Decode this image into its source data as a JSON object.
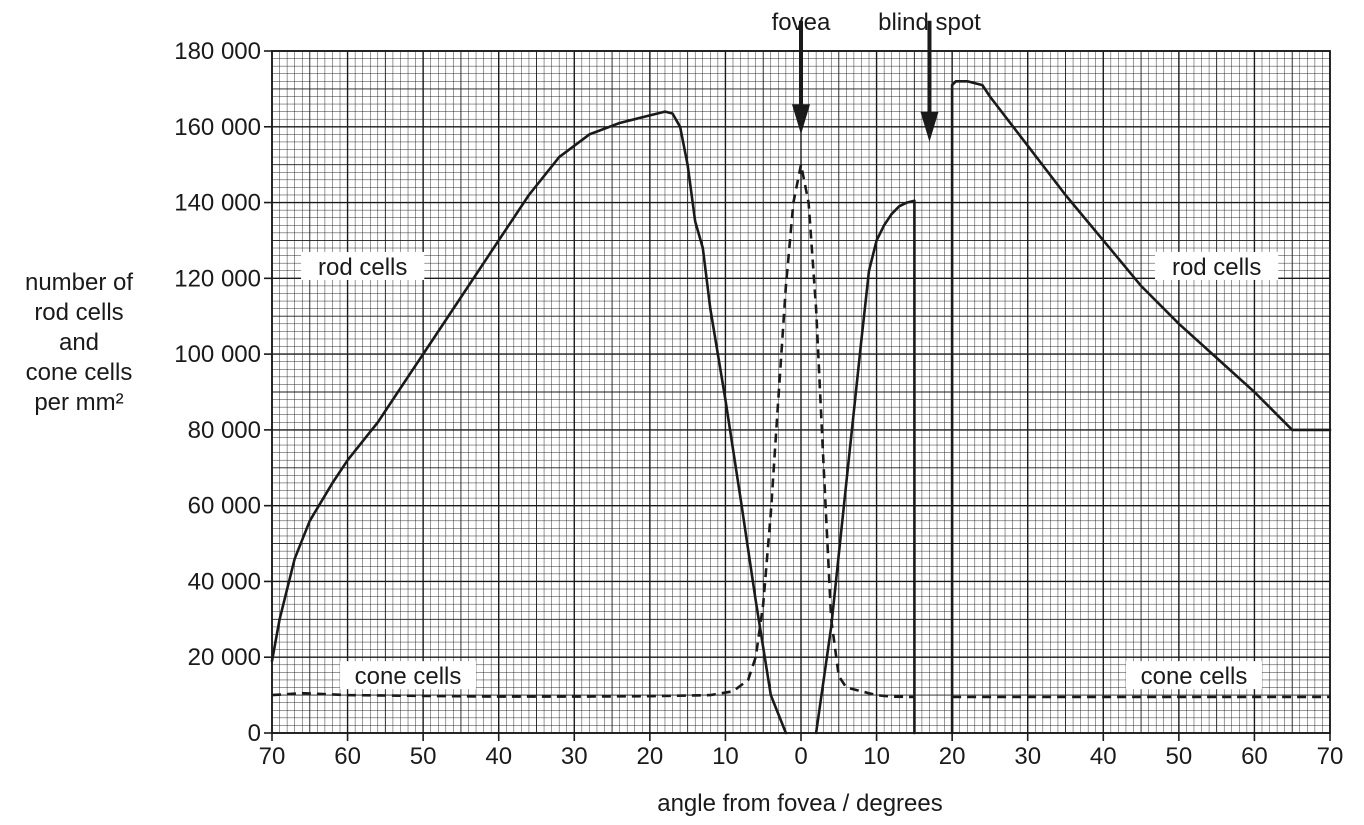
{
  "chart_data": {
    "type": "line",
    "xlabel": "angle from fovea / degrees",
    "ylabel_lines": [
      "number of",
      "rod cells",
      "and",
      "cone cells",
      "per mm²"
    ],
    "x_tick_labels": [
      "70",
      "60",
      "50",
      "40",
      "30",
      "20",
      "10",
      "0",
      "10",
      "20",
      "30",
      "40",
      "50",
      "60",
      "70"
    ],
    "y_tick_labels": [
      "0",
      "20 000",
      "40 000",
      "60 000",
      "80 000",
      "100 000",
      "120 000",
      "140 000",
      "160 000",
      "180 000"
    ],
    "xlim": [
      -70,
      70
    ],
    "ylim": [
      0,
      180000
    ],
    "grid": true,
    "series": [
      {
        "label": "rod cells",
        "style": "solid",
        "color": "#1a1a1a",
        "x": [
          -70,
          -69,
          -67,
          -65,
          -62,
          -60,
          -56,
          -52,
          -48,
          -44,
          -40,
          -36,
          -32,
          -28,
          -24,
          -20,
          -18,
          -17,
          -16,
          -15,
          -14,
          -13,
          -12,
          -10,
          -8,
          -6,
          -4,
          -2
        ],
        "y": [
          19000,
          30000,
          46000,
          56000,
          66000,
          72000,
          82000,
          94000,
          106000,
          118000,
          130000,
          142000,
          152000,
          158000,
          161000,
          163000,
          164000,
          163500,
          160000,
          150000,
          135000,
          128000,
          112000,
          88000,
          62000,
          35000,
          10000,
          0
        ]
      },
      {
        "label": "rod cells",
        "style": "solid",
        "color": "#1a1a1a",
        "x": [
          2,
          4,
          6,
          8,
          9,
          10,
          11,
          12,
          13,
          14,
          15,
          15,
          15
        ],
        "y": [
          0,
          28000,
          66000,
          104000,
          122000,
          130000,
          134000,
          137000,
          139000,
          140000,
          140500,
          70000,
          0
        ]
      },
      {
        "label": "rod cells",
        "style": "solid",
        "color": "#1a1a1a",
        "x": [
          20,
          20,
          20.5,
          22,
          24,
          25,
          30,
          35,
          40,
          45,
          50,
          55,
          60,
          65,
          70
        ],
        "y": [
          0,
          171000,
          172000,
          172000,
          171000,
          168000,
          155000,
          142000,
          130000,
          118000,
          108000,
          99000,
          90000,
          80000,
          80000
        ]
      },
      {
        "label": "cone cells",
        "style": "dashed",
        "color": "#1a1a1a",
        "x": [
          -70,
          -66,
          -60,
          -50,
          -40,
          -30,
          -20,
          -12,
          -9,
          -7,
          -6,
          -5,
          -4,
          -3,
          -2,
          -1,
          0,
          1,
          2,
          3,
          4,
          5,
          6,
          7,
          8,
          9,
          10,
          11,
          12,
          15
        ],
        "y": [
          10000,
          10500,
          10000,
          9800,
          9600,
          9600,
          9700,
          10000,
          11000,
          14000,
          20000,
          34000,
          58000,
          88000,
          118000,
          140000,
          150000,
          140000,
          112000,
          70000,
          30000,
          15000,
          12000,
          11500,
          11000,
          10500,
          10000,
          9800,
          9600,
          9500
        ]
      },
      {
        "label": "cone cells",
        "style": "dashed",
        "color": "#1a1a1a",
        "x": [
          20,
          30,
          40,
          50,
          60,
          70
        ],
        "y": [
          9500,
          9500,
          9500,
          9500,
          9500,
          9500
        ]
      }
    ],
    "labels": [
      {
        "text": "rod cells",
        "x": -58,
        "y": 123000
      },
      {
        "text": "rod cells",
        "x": 55,
        "y": 123000
      },
      {
        "text": "cone cells",
        "x": -52,
        "y": 15000
      },
      {
        "text": "cone cells",
        "x": 52,
        "y": 15000
      }
    ],
    "arrows": [
      {
        "text": "fovea",
        "x": 0,
        "y_top": 188000,
        "y_tip": 158000
      },
      {
        "text": "blind spot",
        "x": 17,
        "y_top": 188000,
        "y_tip": 156000
      }
    ]
  }
}
